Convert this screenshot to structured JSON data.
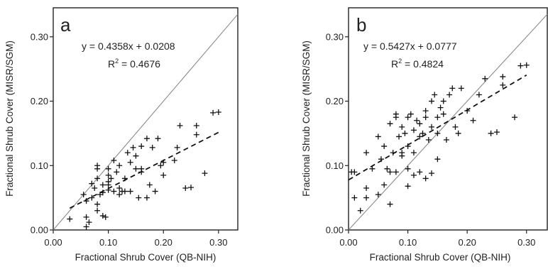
{
  "figure": {
    "panels": [
      {
        "panel_label": "a",
        "equation_text": "y = 0.4358x + 0.0208",
        "r2_prefix": "R",
        "r2_sup": "2",
        "r2_value": " = 0.4676",
        "ylabel": "Fractional Shrub Cover (MISR/SGM)",
        "xlabel": "Fractional Shrub Cover (QB-NIH)",
        "x_ticks": [
          "0.00",
          "0.10",
          "0.20",
          "0.30"
        ],
        "y_ticks": [
          "0.00",
          "0.10",
          "0.20",
          "0.30"
        ]
      },
      {
        "panel_label": "b",
        "equation_text": "y = 0.5427x + 0.0777",
        "r2_prefix": "R",
        "r2_sup": "2",
        "r2_value": " = 0.4824",
        "ylabel": "Fractional Shrub Cover (MISR/SGM)",
        "xlabel": "Fractional Shrub Cover (QB-NIH)",
        "x_ticks": [
          "0.00",
          "0.10",
          "0.20",
          "0.30"
        ],
        "y_ticks": [
          "0.00",
          "0.10",
          "0.20",
          "0.30"
        ]
      }
    ]
  },
  "chart_data": [
    {
      "type": "scatter",
      "title": "",
      "xlabel": "Fractional Shrub Cover (QB-NIH)",
      "ylabel": "Fractional Shrub Cover (MISR/SGM)",
      "xlim": [
        0,
        0.335
      ],
      "ylim": [
        0,
        0.345
      ],
      "grid": false,
      "marker": "plus",
      "reference_line": {
        "style": "solid",
        "slope": 1,
        "intercept": 0
      },
      "fit_line": {
        "style": "dashed",
        "slope": 0.4358,
        "intercept": 0.0208,
        "x_range": [
          0.03,
          0.3
        ]
      },
      "series": [
        {
          "x": [
            0.03,
            0.055,
            0.06,
            0.06,
            0.065,
            0.07,
            0.075,
            0.08,
            0.08,
            0.08,
            0.085,
            0.09,
            0.09,
            0.095,
            0.1,
            0.1,
            0.1,
            0.1,
            0.105,
            0.11,
            0.11,
            0.115,
            0.12,
            0.12,
            0.125,
            0.13,
            0.13,
            0.135,
            0.14,
            0.145,
            0.15,
            0.15,
            0.155,
            0.16,
            0.16,
            0.17,
            0.17,
            0.175,
            0.18,
            0.185,
            0.19,
            0.195,
            0.2,
            0.22,
            0.225,
            0.23,
            0.24,
            0.25,
            0.26,
            0.26,
            0.275,
            0.29,
            0.3,
            0.06,
            0.07,
            0.08,
            0.09,
            0.1,
            0.08,
            0.12,
            0.14,
            0.16,
            0.2
          ],
          "y": [
            0.017,
            0.055,
            0.02,
            0.005,
            0.012,
            0.072,
            0.065,
            0.095,
            0.1,
            0.03,
            0.055,
            0.058,
            0.022,
            0.02,
            0.07,
            0.085,
            0.095,
            0.062,
            0.08,
            0.108,
            0.06,
            0.09,
            0.1,
            0.065,
            0.06,
            0.08,
            0.06,
            0.12,
            0.06,
            0.128,
            0.095,
            0.115,
            0.05,
            0.13,
            0.095,
            0.05,
            0.142,
            0.07,
            0.128,
            0.06,
            0.142,
            0.1,
            0.105,
            0.108,
            0.128,
            0.162,
            0.065,
            0.066,
            0.148,
            0.162,
            0.088,
            0.182,
            0.183,
            0.045,
            0.05,
            0.04,
            0.07,
            0.075,
            0.08,
            0.055,
            0.105,
            0.09,
            0.085
          ]
        }
      ]
    },
    {
      "type": "scatter",
      "title": "",
      "xlabel": "Fractional Shrub Cover (QB-NIH)",
      "ylabel": "Fractional Shrub Cover (MISR/SGM)",
      "xlim": [
        0,
        0.335
      ],
      "ylim": [
        0,
        0.345
      ],
      "grid": false,
      "marker": "plus",
      "reference_line": {
        "style": "solid",
        "slope": 1,
        "intercept": 0
      },
      "fit_line": {
        "style": "dashed",
        "slope": 0.5427,
        "intercept": 0.0777,
        "x_range": [
          0.0,
          0.3
        ]
      },
      "series": [
        {
          "x": [
            0.005,
            0.01,
            0.02,
            0.03,
            0.03,
            0.04,
            0.05,
            0.05,
            0.055,
            0.06,
            0.065,
            0.07,
            0.07,
            0.075,
            0.08,
            0.08,
            0.085,
            0.09,
            0.09,
            0.095,
            0.1,
            0.1,
            0.1,
            0.105,
            0.11,
            0.11,
            0.115,
            0.12,
            0.12,
            0.125,
            0.13,
            0.13,
            0.135,
            0.14,
            0.14,
            0.145,
            0.15,
            0.15,
            0.155,
            0.16,
            0.165,
            0.17,
            0.175,
            0.18,
            0.185,
            0.19,
            0.2,
            0.21,
            0.22,
            0.23,
            0.24,
            0.25,
            0.26,
            0.26,
            0.28,
            0.29,
            0.3,
            0.01,
            0.03,
            0.06,
            0.07,
            0.08,
            0.09,
            0.1,
            0.11,
            0.12,
            0.13,
            0.14,
            0.15,
            0.16
          ],
          "y": [
            0.09,
            0.05,
            0.03,
            0.065,
            0.12,
            0.095,
            0.145,
            0.055,
            0.11,
            0.13,
            0.095,
            0.165,
            0.09,
            0.12,
            0.175,
            0.18,
            0.145,
            0.16,
            0.115,
            0.15,
            0.175,
            0.13,
            0.095,
            0.18,
            0.155,
            0.12,
            0.17,
            0.145,
            0.165,
            0.15,
            0.175,
            0.185,
            0.14,
            0.2,
            0.16,
            0.21,
            0.175,
            0.15,
            0.19,
            0.2,
            0.14,
            0.21,
            0.22,
            0.16,
            0.15,
            0.22,
            0.185,
            0.17,
            0.21,
            0.235,
            0.15,
            0.152,
            0.225,
            0.238,
            0.175,
            0.255,
            0.256,
            0.09,
            0.05,
            0.07,
            0.04,
            0.09,
            0.12,
            0.068,
            0.085,
            0.09,
            0.08,
            0.088,
            0.11,
            0.18
          ]
        }
      ]
    }
  ]
}
